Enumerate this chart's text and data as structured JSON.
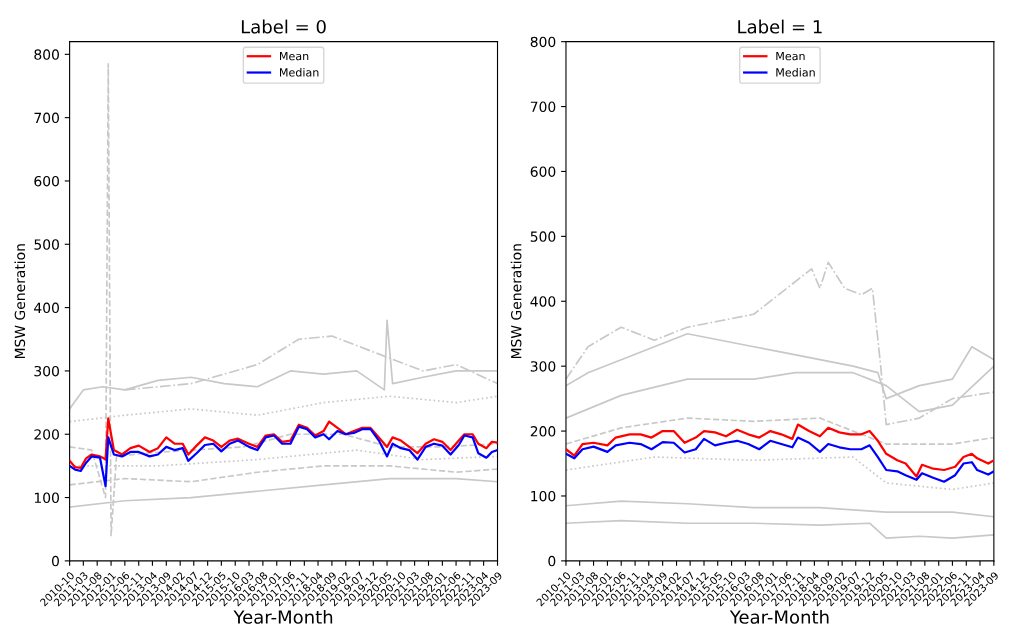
{
  "chart_data": [
    {
      "type": "line",
      "title": "Label = 0",
      "xlabel": "Year-Month",
      "ylabel": "MSW Generation",
      "legend": "top",
      "grid": false,
      "xlim": [
        "2010-10",
        "2023-09"
      ],
      "ylim": [
        0,
        820
      ],
      "yticks": [
        0,
        100,
        200,
        300,
        400,
        500,
        600,
        700,
        800
      ],
      "xticks": [
        "2010-10",
        "2011-03",
        "2011-08",
        "2012-01",
        "2012-06",
        "2012-11",
        "2013-04",
        "2013-09",
        "2014-02",
        "2014-07",
        "2014-12",
        "2015-05",
        "2015-10",
        "2016-03",
        "2016-08",
        "2017-01",
        "2017-06",
        "2017-11",
        "2018-04",
        "2018-09",
        "2019-02",
        "2019-07",
        "2019-12",
        "2020-05",
        "2020-10",
        "2021-03",
        "2021-08",
        "2022-01",
        "2022-06",
        "2022-11",
        "2023-04",
        "2023-09"
      ],
      "series": [
        {
          "color": "#c8c8c8",
          "line_style": "dashed",
          "x": [
            "2010-10",
            "2011-06",
            "2011-11",
            "2011-12",
            "2012-01",
            "2012-03",
            "2013-01",
            "2014-06",
            "2016-01",
            "2017-06",
            "2019-01",
            "2020-06",
            "2022-01",
            "2023-09"
          ],
          "values": [
            180,
            175,
            100,
            785,
            40,
            165,
            170,
            175,
            180,
            200,
            200,
            180,
            180,
            185
          ]
        },
        {
          "color": "#c8c8c8",
          "line_style": "solid",
          "x": [
            "2010-10",
            "2011-03",
            "2011-10",
            "2012-06",
            "2013-06",
            "2014-06",
            "2015-06",
            "2016-06",
            "2017-06",
            "2018-06",
            "2019-06",
            "2020-04",
            "2020-05",
            "2020-07",
            "2021-06",
            "2022-06",
            "2023-09"
          ],
          "values": [
            240,
            270,
            275,
            270,
            285,
            290,
            280,
            275,
            300,
            295,
            300,
            270,
            380,
            280,
            290,
            300,
            300
          ]
        },
        {
          "color": "#c8c8c8",
          "line_style": "dashdot",
          "x": [
            "2012-06",
            "2014-06",
            "2016-06",
            "2017-09",
            "2018-09",
            "2019-06",
            "2020-06",
            "2021-06",
            "2022-06",
            "2023-09"
          ],
          "values": [
            270,
            280,
            310,
            350,
            355,
            340,
            320,
            300,
            310,
            280
          ]
        },
        {
          "color": "#c8c8c8",
          "line_style": "dotted",
          "x": [
            "2010-10",
            "2012-06",
            "2014-06",
            "2016-06",
            "2018-06",
            "2020-06",
            "2022-06",
            "2023-09"
          ],
          "values": [
            220,
            230,
            240,
            230,
            250,
            260,
            250,
            260
          ]
        },
        {
          "color": "#c8c8c8",
          "line_style": "solid",
          "x": [
            "2010-10",
            "2012-06",
            "2014-06",
            "2016-06",
            "2018-06",
            "2020-06",
            "2022-06",
            "2023-09"
          ],
          "values": [
            85,
            95,
            100,
            110,
            120,
            130,
            130,
            125
          ]
        },
        {
          "color": "#c8c8c8",
          "line_style": "dashed",
          "x": [
            "2010-10",
            "2012-06",
            "2014-06",
            "2016-06",
            "2018-06",
            "2020-06",
            "2022-06",
            "2023-09"
          ],
          "values": [
            120,
            130,
            125,
            140,
            150,
            150,
            140,
            145
          ]
        },
        {
          "color": "#c8c8c8",
          "line_style": "dotted",
          "x": [
            "2010-10",
            "2013-06",
            "2016-06",
            "2019-06",
            "2021-06",
            "2023-09"
          ],
          "values": [
            150,
            150,
            160,
            175,
            160,
            165
          ]
        },
        {
          "name": "Mean",
          "color": "#ff0000",
          "line_style": "solid",
          "x": [
            "2010-10",
            "2010-12",
            "2011-02",
            "2011-04",
            "2011-06",
            "2011-09",
            "2011-10",
            "2011-11",
            "2011-12",
            "2012-02",
            "2012-05",
            "2012-08",
            "2012-11",
            "2013-03",
            "2013-06",
            "2013-09",
            "2013-12",
            "2014-03",
            "2014-05",
            "2014-08",
            "2014-11",
            "2015-02",
            "2015-05",
            "2015-08",
            "2015-11",
            "2016-03",
            "2016-06",
            "2016-09",
            "2016-12",
            "2017-03",
            "2017-06",
            "2017-09",
            "2017-12",
            "2018-03",
            "2018-06",
            "2018-08",
            "2018-11",
            "2019-02",
            "2019-05",
            "2019-08",
            "2019-11",
            "2020-02",
            "2020-05",
            "2020-07",
            "2020-10",
            "2021-01",
            "2021-04",
            "2021-07",
            "2021-10",
            "2022-01",
            "2022-04",
            "2022-07",
            "2022-09",
            "2022-12",
            "2023-02",
            "2023-05",
            "2023-07",
            "2023-09"
          ],
          "values": [
            158,
            148,
            147,
            162,
            168,
            165,
            163,
            160,
            225,
            175,
            168,
            178,
            182,
            172,
            178,
            195,
            185,
            185,
            168,
            182,
            195,
            190,
            180,
            190,
            193,
            185,
            180,
            198,
            200,
            188,
            190,
            215,
            210,
            198,
            205,
            220,
            210,
            200,
            205,
            210,
            210,
            195,
            180,
            195,
            190,
            180,
            170,
            185,
            192,
            188,
            175,
            190,
            200,
            200,
            185,
            178,
            188,
            187
          ]
        },
        {
          "name": "Median",
          "color": "#0000ff",
          "line_style": "solid",
          "x": [
            "2010-10",
            "2010-12",
            "2011-02",
            "2011-04",
            "2011-06",
            "2011-09",
            "2011-11",
            "2011-12",
            "2012-02",
            "2012-05",
            "2012-08",
            "2012-11",
            "2013-03",
            "2013-06",
            "2013-09",
            "2013-12",
            "2014-03",
            "2014-05",
            "2014-08",
            "2014-11",
            "2015-02",
            "2015-05",
            "2015-08",
            "2015-11",
            "2016-03",
            "2016-06",
            "2016-09",
            "2016-12",
            "2017-03",
            "2017-06",
            "2017-09",
            "2017-12",
            "2018-03",
            "2018-06",
            "2018-08",
            "2018-11",
            "2019-02",
            "2019-05",
            "2019-08",
            "2019-11",
            "2020-02",
            "2020-05",
            "2020-07",
            "2020-10",
            "2021-01",
            "2021-04",
            "2021-07",
            "2021-10",
            "2022-01",
            "2022-04",
            "2022-07",
            "2022-09",
            "2022-12",
            "2023-02",
            "2023-05",
            "2023-07",
            "2023-09"
          ],
          "values": [
            150,
            144,
            142,
            155,
            165,
            163,
            118,
            195,
            168,
            165,
            172,
            172,
            165,
            168,
            180,
            175,
            178,
            158,
            170,
            183,
            185,
            173,
            185,
            190,
            180,
            175,
            195,
            198,
            185,
            185,
            212,
            208,
            195,
            200,
            192,
            205,
            200,
            202,
            208,
            208,
            190,
            165,
            185,
            178,
            175,
            160,
            180,
            185,
            182,
            168,
            183,
            198,
            195,
            170,
            163,
            172,
            175
          ]
        }
      ]
    },
    {
      "type": "line",
      "title": "Label = 1",
      "xlabel": "Year-Month",
      "ylabel": "MSW Generation",
      "legend": "top",
      "grid": false,
      "xlim": [
        "2010-10",
        "2023-09"
      ],
      "ylim": [
        0,
        800
      ],
      "yticks": [
        0,
        100,
        200,
        300,
        400,
        500,
        600,
        700,
        800
      ],
      "xticks": [
        "2010-10",
        "2011-03",
        "2011-08",
        "2012-01",
        "2012-06",
        "2012-11",
        "2013-04",
        "2013-09",
        "2014-02",
        "2014-07",
        "2014-12",
        "2015-05",
        "2015-10",
        "2016-03",
        "2016-08",
        "2017-01",
        "2017-06",
        "2017-11",
        "2018-04",
        "2018-09",
        "2019-02",
        "2019-07",
        "2019-12",
        "2020-05",
        "2020-10",
        "2021-03",
        "2021-08",
        "2022-01",
        "2022-06",
        "2022-11",
        "2023-04",
        "2023-09"
      ],
      "series": [
        {
          "color": "#c8c8c8",
          "line_style": "dashdot",
          "x": [
            "2010-10",
            "2011-06",
            "2012-06",
            "2013-06",
            "2014-06",
            "2015-06",
            "2016-06",
            "2017-06",
            "2018-03",
            "2018-06",
            "2018-09",
            "2019-03",
            "2019-09",
            "2020-01",
            "2020-04",
            "2020-06",
            "2021-06",
            "2022-06",
            "2023-09"
          ],
          "values": [
            280,
            330,
            360,
            340,
            360,
            370,
            380,
            420,
            450,
            420,
            460,
            420,
            410,
            420,
            300,
            210,
            220,
            250,
            260
          ]
        },
        {
          "color": "#c8c8c8",
          "line_style": "solid",
          "x": [
            "2010-10",
            "2011-06",
            "2012-06",
            "2013-06",
            "2014-06",
            "2015-06",
            "2016-06",
            "2017-06",
            "2018-06",
            "2019-06",
            "2020-03",
            "2020-06",
            "2021-06",
            "2022-06",
            "2023-01",
            "2023-09"
          ],
          "values": [
            270,
            290,
            310,
            330,
            350,
            340,
            330,
            320,
            310,
            300,
            290,
            250,
            270,
            280,
            330,
            310
          ]
        },
        {
          "color": "#c8c8c8",
          "line_style": "solid",
          "x": [
            "2010-10",
            "2012-06",
            "2014-06",
            "2016-06",
            "2017-09",
            "2019-06",
            "2020-06",
            "2021-06",
            "2022-06",
            "2023-09"
          ],
          "values": [
            220,
            255,
            280,
            280,
            290,
            290,
            270,
            230,
            240,
            300
          ]
        },
        {
          "color": "#c8c8c8",
          "line_style": "dashed",
          "x": [
            "2010-10",
            "2012-06",
            "2014-06",
            "2016-06",
            "2018-06",
            "2020-06",
            "2022-06",
            "2023-09"
          ],
          "values": [
            180,
            205,
            220,
            215,
            220,
            180,
            180,
            190
          ]
        },
        {
          "color": "#c8c8c8",
          "line_style": "dotted",
          "x": [
            "2010-10",
            "2013-06",
            "2016-06",
            "2019-06",
            "2020-06",
            "2022-06",
            "2023-09"
          ],
          "values": [
            140,
            160,
            155,
            160,
            120,
            110,
            120
          ]
        },
        {
          "color": "#c8c8c8",
          "line_style": "solid",
          "x": [
            "2010-10",
            "2012-06",
            "2014-06",
            "2016-06",
            "2018-06",
            "2020-06",
            "2022-06",
            "2023-09"
          ],
          "values": [
            85,
            92,
            88,
            82,
            82,
            75,
            75,
            68
          ]
        },
        {
          "color": "#c8c8c8",
          "line_style": "solid",
          "x": [
            "2010-10",
            "2012-06",
            "2014-06",
            "2016-06",
            "2018-06",
            "2019-12",
            "2020-06",
            "2021-06",
            "2022-06",
            "2023-09"
          ],
          "values": [
            58,
            62,
            58,
            58,
            55,
            58,
            35,
            38,
            35,
            40
          ]
        },
        {
          "name": "Mean",
          "color": "#ff0000",
          "line_style": "solid",
          "x": [
            "2010-10",
            "2011-01",
            "2011-04",
            "2011-08",
            "2012-01",
            "2012-04",
            "2012-09",
            "2013-01",
            "2013-05",
            "2013-09",
            "2014-01",
            "2014-05",
            "2014-09",
            "2014-12",
            "2015-04",
            "2015-08",
            "2015-12",
            "2016-04",
            "2016-08",
            "2016-12",
            "2017-04",
            "2017-08",
            "2017-10",
            "2018-02",
            "2018-06",
            "2018-09",
            "2019-01",
            "2019-05",
            "2019-09",
            "2019-12",
            "2020-03",
            "2020-06",
            "2020-10",
            "2021-01",
            "2021-05",
            "2021-07",
            "2021-11",
            "2022-03",
            "2022-07",
            "2022-10",
            "2023-01",
            "2023-03",
            "2023-07",
            "2023-09"
          ],
          "values": [
            172,
            162,
            180,
            182,
            178,
            190,
            195,
            195,
            190,
            200,
            200,
            182,
            190,
            200,
            198,
            192,
            202,
            195,
            190,
            200,
            195,
            188,
            210,
            200,
            192,
            205,
            198,
            195,
            195,
            200,
            185,
            165,
            155,
            150,
            130,
            148,
            142,
            140,
            145,
            160,
            165,
            158,
            150,
            155
          ]
        },
        {
          "name": "Median",
          "color": "#0000ff",
          "line_style": "solid",
          "x": [
            "2010-10",
            "2011-01",
            "2011-04",
            "2011-08",
            "2012-01",
            "2012-04",
            "2012-09",
            "2013-01",
            "2013-05",
            "2013-09",
            "2014-01",
            "2014-05",
            "2014-09",
            "2014-12",
            "2015-04",
            "2015-08",
            "2015-12",
            "2016-04",
            "2016-08",
            "2016-12",
            "2017-04",
            "2017-08",
            "2017-10",
            "2018-02",
            "2018-06",
            "2018-09",
            "2019-01",
            "2019-05",
            "2019-09",
            "2019-12",
            "2020-03",
            "2020-06",
            "2020-10",
            "2021-01",
            "2021-05",
            "2021-07",
            "2021-11",
            "2022-03",
            "2022-07",
            "2022-10",
            "2023-01",
            "2023-03",
            "2023-07",
            "2023-09"
          ],
          "values": [
            165,
            158,
            172,
            176,
            168,
            178,
            182,
            180,
            172,
            183,
            182,
            167,
            172,
            188,
            178,
            182,
            185,
            180,
            172,
            185,
            180,
            175,
            190,
            182,
            168,
            180,
            175,
            172,
            172,
            178,
            160,
            140,
            138,
            132,
            125,
            135,
            128,
            122,
            132,
            150,
            152,
            140,
            133,
            138
          ]
        }
      ]
    }
  ]
}
